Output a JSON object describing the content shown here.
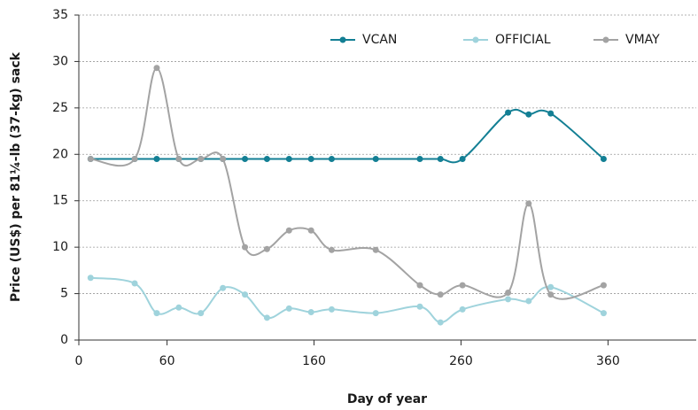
{
  "chart_data": {
    "type": "line",
    "x_label": "Day of year",
    "y_label": "Price (US$) per 81¼-lb (37-kg) sack",
    "x": [
      8,
      38,
      53,
      68,
      83,
      98,
      113,
      128,
      143,
      158,
      172,
      202,
      232,
      246,
      261,
      292,
      306,
      321,
      357
    ],
    "series": [
      {
        "name": "VCAN",
        "color": "#137f94",
        "values": [
          19.5,
          19.5,
          19.5,
          19.5,
          19.5,
          19.5,
          19.5,
          19.5,
          19.5,
          19.5,
          19.5,
          19.5,
          19.5,
          19.5,
          19.5,
          24.5,
          24.3,
          24.4,
          19.5
        ]
      },
      {
        "name": "OFFICIAL",
        "color": "#9fd3dc",
        "values": [
          6.7,
          6.1,
          2.9,
          3.5,
          2.9,
          5.6,
          4.9,
          2.4,
          3.4,
          3.0,
          3.3,
          2.9,
          3.6,
          1.9,
          3.3,
          4.4,
          4.2,
          5.7,
          2.9
        ]
      },
      {
        "name": "VMAY",
        "color": "#a3a3a3",
        "values": [
          19.5,
          19.5,
          29.3,
          19.5,
          19.5,
          19.5,
          10.0,
          9.8,
          11.8,
          11.8,
          9.7,
          9.7,
          5.9,
          4.9,
          5.9,
          5.1,
          14.7,
          4.9,
          5.9
        ]
      }
    ],
    "xlim": [
      0,
      420
    ],
    "xticks": [
      0,
      60,
      160,
      260,
      360
    ],
    "ylim": [
      0,
      35
    ],
    "yticks": [
      0,
      5,
      10,
      15,
      20,
      25,
      30,
      35
    ],
    "grid": true,
    "legend": "top-right"
  }
}
